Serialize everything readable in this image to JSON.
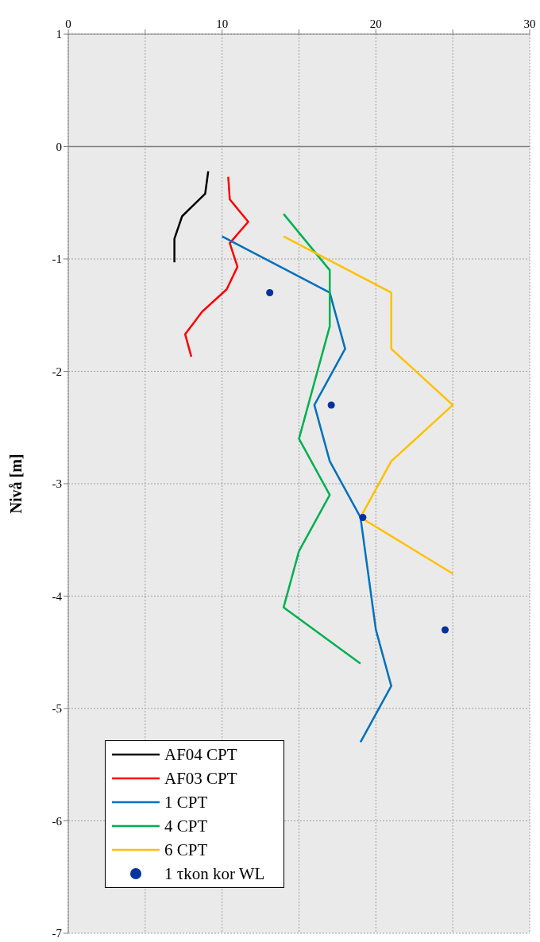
{
  "chart_data": {
    "type": "line",
    "ylabel": "Nivå [m]",
    "xlim": [
      0,
      30
    ],
    "xticks": [
      0,
      {
        "value": 5,
        "label": null
      },
      10,
      {
        "value": 15,
        "label": null
      },
      20,
      {
        "value": 25,
        "label": null
      },
      30
    ],
    "ylim": [
      -7,
      1
    ],
    "yticks": [
      -7,
      -6,
      -5,
      -4,
      -3,
      -2,
      -1,
      0,
      1
    ],
    "grid": true,
    "legend": "bottom left",
    "line_style": "solid",
    "ref_lines": [
      {
        "axis": "y",
        "value": 0,
        "color": "#808080"
      }
    ],
    "series": [
      {
        "name": "AF04 CPT",
        "color": "#000000",
        "marker": "none",
        "x": [
          9.1,
          8.9,
          7.4,
          6.9,
          6.9
        ],
        "values": [
          -0.22,
          -0.42,
          -0.62,
          -0.82,
          -1.03
        ]
      },
      {
        "name": "AF03 CPT",
        "color": "#ff0000",
        "marker": "none",
        "x": [
          10.4,
          10.5,
          11.7,
          10.5,
          11.0,
          10.3,
          8.7,
          7.6,
          8.0
        ],
        "values": [
          -0.27,
          -0.47,
          -0.67,
          -0.86,
          -1.07,
          -1.27,
          -1.47,
          -1.67,
          -1.87
        ]
      },
      {
        "name": "1 CPT",
        "color": "#0070c0",
        "marker": "none",
        "x": [
          10,
          17,
          18,
          16,
          17,
          19,
          20,
          21,
          19
        ],
        "values": [
          -0.8,
          -1.3,
          -1.8,
          -2.3,
          -2.8,
          -3.3,
          -4.3,
          -4.8,
          -5.3
        ]
      },
      {
        "name": "4 CPT",
        "color": "#00b050",
        "marker": "none",
        "x": [
          14,
          17,
          17,
          15,
          17,
          15,
          14,
          19
        ],
        "values": [
          -0.6,
          -1.1,
          -1.6,
          -2.6,
          -3.1,
          -3.6,
          -4.1,
          -4.6
        ]
      },
      {
        "name": "6 CPT",
        "color": "#ffc000",
        "marker": "none",
        "x": [
          14,
          21,
          21,
          25,
          21,
          19,
          25
        ],
        "values": [
          -0.8,
          -1.3,
          -1.8,
          -2.3,
          -2.8,
          -3.3,
          -3.8
        ]
      },
      {
        "name": "1 τkon kor WL",
        "type": "scatter",
        "color": "#0033a0",
        "marker": "circle",
        "x": [
          13.1,
          17.1,
          19.15,
          24.5
        ],
        "values": [
          -1.3,
          -2.3,
          -3.3,
          -4.3
        ]
      }
    ]
  }
}
